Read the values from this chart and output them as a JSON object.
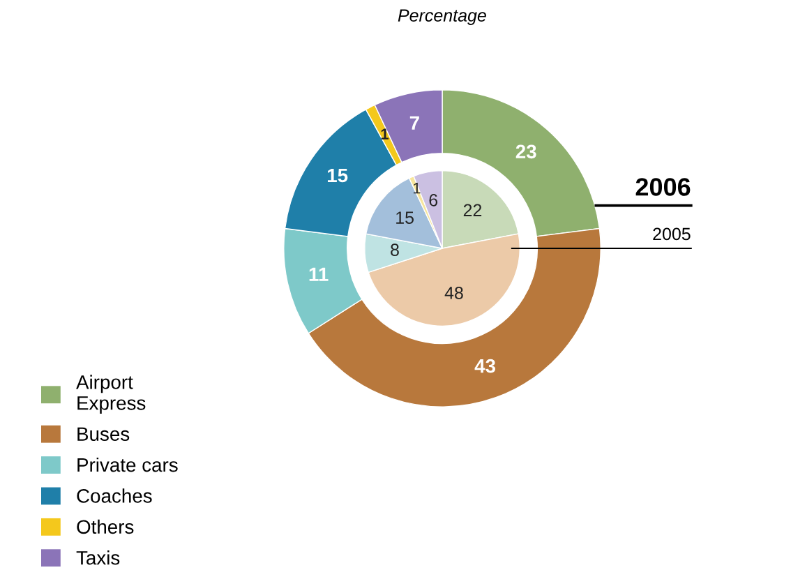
{
  "chart_data": {
    "type": "donut",
    "title": "Percentage",
    "categories": [
      "Airport Express",
      "Buses",
      "Private cars",
      "Coaches",
      "Others",
      "Taxis"
    ],
    "series": [
      {
        "name": "2006",
        "values": [
          23,
          43,
          11,
          15,
          1,
          7
        ],
        "colors": [
          "#8fb06e",
          "#b8783c",
          "#7ec9c9",
          "#1f7fa9",
          "#f4c81c",
          "#8b74b8"
        ]
      },
      {
        "name": "2005",
        "values": [
          22,
          48,
          8,
          15,
          1,
          6
        ],
        "colors": [
          "#c8dab8",
          "#eccaa8",
          "#bfe3e3",
          "#a3bfdb",
          "#f7e59c",
          "#cbc0e2"
        ]
      }
    ],
    "data_labels": true,
    "legend": "bottom left"
  }
}
